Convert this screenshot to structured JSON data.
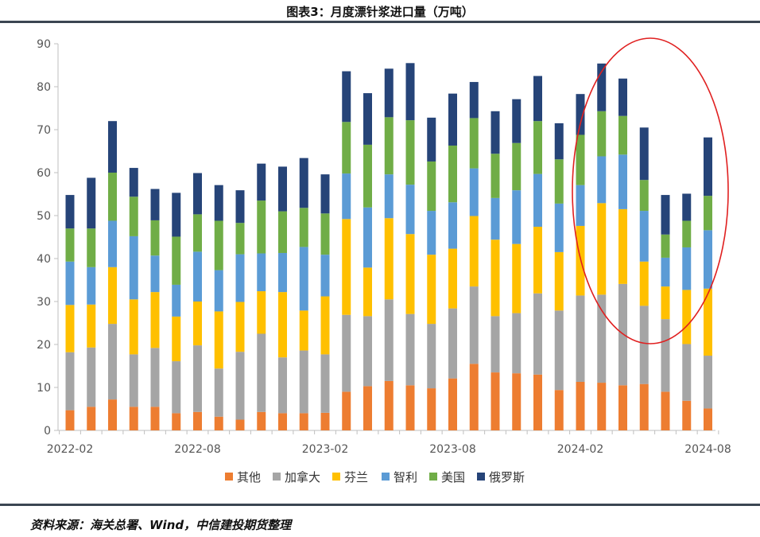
{
  "title": "图表3：月度漂针浆进口量（万吨）",
  "source": "资料来源：海关总署、Wind，中信建投期货整理",
  "chart_data": {
    "type": "bar",
    "stacked": true,
    "categories": [
      "2022-02",
      "2022-03",
      "2022-04",
      "2022-05",
      "2022-06",
      "2022-07",
      "2022-08",
      "2022-09",
      "2022-10",
      "2022-11",
      "2022-12",
      "2023-01",
      "2023-02",
      "2023-03",
      "2023-04",
      "2023-05",
      "2023-06",
      "2023-07",
      "2023-08",
      "2023-09",
      "2023-10",
      "2023-11",
      "2023-12",
      "2024-01",
      "2024-02",
      "2024-03",
      "2024-04",
      "2024-05",
      "2024-06",
      "2024-07",
      "2024-08"
    ],
    "x_tick_labels": [
      "2022-02",
      "2022-08",
      "2023-02",
      "2023-08",
      "2024-02",
      "2024-08"
    ],
    "ylim": [
      0,
      90
    ],
    "yticks": [
      0,
      10,
      20,
      30,
      40,
      50,
      60,
      70,
      80,
      90
    ],
    "legend_position": "bottom",
    "series": [
      {
        "name": "其他",
        "color": "#ED7D31",
        "values": [
          4.7,
          5.5,
          7.2,
          5.5,
          5.5,
          4.0,
          4.3,
          3.2,
          2.5,
          4.3,
          4.0,
          4.0,
          4.1,
          9.0,
          10.3,
          11.5,
          10.5,
          9.8,
          12.1,
          15.5,
          13.5,
          13.3,
          13.0,
          9.4,
          11.3,
          11.1,
          10.5,
          10.8,
          9.0,
          6.9,
          5.1
        ]
      },
      {
        "name": "加拿大",
        "color": "#A5A5A5",
        "values": [
          13.5,
          13.8,
          17.6,
          12.2,
          13.7,
          12.1,
          15.5,
          11.2,
          15.8,
          18.2,
          13.0,
          14.6,
          13.6,
          17.9,
          16.3,
          19.0,
          16.6,
          15.0,
          16.3,
          18.0,
          13.1,
          14.0,
          18.9,
          18.5,
          20.1,
          20.5,
          23.6,
          18.2,
          16.9,
          13.2,
          12.3
        ]
      },
      {
        "name": "芬兰",
        "color": "#FFC000",
        "values": [
          11.0,
          10.0,
          13.2,
          12.8,
          13.0,
          10.4,
          10.2,
          13.3,
          11.6,
          9.9,
          15.2,
          9.3,
          13.5,
          22.3,
          11.3,
          18.9,
          18.6,
          16.1,
          13.9,
          16.4,
          17.8,
          16.1,
          15.5,
          13.6,
          16.2,
          21.3,
          17.4,
          10.3,
          7.6,
          12.6,
          15.6
        ]
      },
      {
        "name": "智利",
        "color": "#5B9BD5",
        "values": [
          10.1,
          8.7,
          10.8,
          14.7,
          8.5,
          7.4,
          11.6,
          9.6,
          11.1,
          8.8,
          9.1,
          14.8,
          9.7,
          10.6,
          14.0,
          10.2,
          11.5,
          10.2,
          10.8,
          11.1,
          9.7,
          12.5,
          12.3,
          11.3,
          9.5,
          10.9,
          12.7,
          11.8,
          6.7,
          9.9,
          13.6
        ]
      },
      {
        "name": "美国",
        "color": "#70AD47",
        "values": [
          7.7,
          9.0,
          11.2,
          9.2,
          8.2,
          11.2,
          8.7,
          11.5,
          7.3,
          12.3,
          9.7,
          9.1,
          9.6,
          12.0,
          14.6,
          13.3,
          15.0,
          11.5,
          13.2,
          11.7,
          10.3,
          11.0,
          12.3,
          10.3,
          11.7,
          10.5,
          9.0,
          7.2,
          5.4,
          6.2,
          8.0
        ]
      },
      {
        "name": "俄罗斯",
        "color": "#264478",
        "values": [
          7.8,
          11.8,
          12.0,
          6.7,
          7.3,
          10.2,
          9.6,
          8.3,
          7.6,
          8.6,
          10.4,
          11.6,
          9.1,
          11.8,
          12.0,
          11.3,
          13.3,
          10.2,
          12.1,
          8.4,
          9.9,
          10.2,
          10.5,
          8.4,
          9.5,
          11.1,
          8.7,
          12.2,
          9.2,
          6.3,
          13.6
        ]
      }
    ]
  }
}
